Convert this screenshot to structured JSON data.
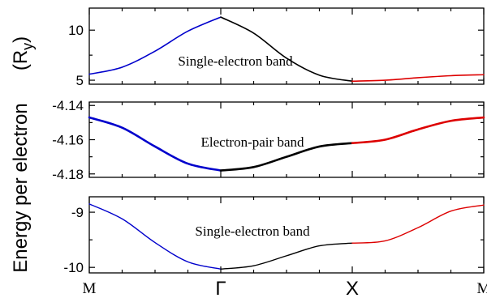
{
  "chart_data": {
    "type": "line",
    "ylabel": "Energy per electron",
    "yunit": "(R",
    "yunit_sub": "y",
    "yunit_close": ")",
    "x_ticks": [
      {
        "label": "M",
        "pos": 0
      },
      {
        "label": "Γ",
        "pos": 1
      },
      {
        "label": "X",
        "pos": 2
      },
      {
        "label": "M",
        "pos": 3
      }
    ],
    "xlim": [
      0,
      3
    ],
    "panels": [
      {
        "name": "single-electron-top",
        "annotation": "Single-electron band",
        "ylim": [
          4.6,
          12.2
        ],
        "yticks": [
          {
            "label": "10",
            "value": 10
          },
          {
            "label": "5",
            "value": 5
          }
        ],
        "segments": [
          {
            "color": "#0000cc",
            "x": [
              0,
              0.25,
              0.5,
              0.75,
              1.0
            ],
            "y": [
              5.6,
              6.3,
              7.9,
              9.9,
              11.3
            ]
          },
          {
            "color": "#000000",
            "x": [
              1.0,
              1.25,
              1.5,
              1.75,
              2.0
            ],
            "y": [
              11.3,
              9.7,
              7.2,
              5.5,
              4.9
            ]
          },
          {
            "color": "#dd0000",
            "x": [
              2.0,
              2.25,
              2.5,
              2.75,
              3.0
            ],
            "y": [
              4.9,
              5.0,
              5.25,
              5.45,
              5.55
            ]
          }
        ]
      },
      {
        "name": "electron-pair",
        "annotation": "Electron-pair band",
        "ylim": [
          -4.182,
          -4.138
        ],
        "yticks": [
          {
            "label": "-4.14",
            "value": -4.14
          },
          {
            "label": "-4.16",
            "value": -4.16
          },
          {
            "label": "-4.18",
            "value": -4.18
          }
        ],
        "segments": [
          {
            "color": "#0000cc",
            "x": [
              0,
              0.25,
              0.5,
              0.75,
              1.0
            ],
            "y": [
              -4.147,
              -4.153,
              -4.164,
              -4.174,
              -4.178
            ]
          },
          {
            "color": "#000000",
            "x": [
              1.0,
              1.25,
              1.5,
              1.75,
              2.0
            ],
            "y": [
              -4.178,
              -4.176,
              -4.17,
              -4.164,
              -4.162
            ]
          },
          {
            "color": "#dd0000",
            "x": [
              2.0,
              2.25,
              2.5,
              2.75,
              3.0
            ],
            "y": [
              -4.162,
              -4.16,
              -4.154,
              -4.149,
              -4.147
            ]
          }
        ]
      },
      {
        "name": "single-electron-bottom",
        "annotation": "Single-electron band",
        "ylim": [
          -10.1,
          -8.72
        ],
        "yticks": [
          {
            "label": "-9",
            "value": -9
          },
          {
            "label": "-10",
            "value": -10
          }
        ],
        "segments": [
          {
            "color": "#0000cc",
            "x": [
              0,
              0.25,
              0.5,
              0.75,
              1.0
            ],
            "y": [
              -8.85,
              -9.12,
              -9.55,
              -9.9,
              -10.03
            ]
          },
          {
            "color": "#000000",
            "x": [
              1.0,
              1.25,
              1.5,
              1.75,
              2.0
            ],
            "y": [
              -10.03,
              -9.97,
              -9.79,
              -9.61,
              -9.56
            ]
          },
          {
            "color": "#dd0000",
            "x": [
              2.0,
              2.25,
              2.5,
              2.75,
              3.0
            ],
            "y": [
              -9.56,
              -9.52,
              -9.28,
              -8.98,
              -8.87
            ]
          }
        ]
      }
    ]
  }
}
